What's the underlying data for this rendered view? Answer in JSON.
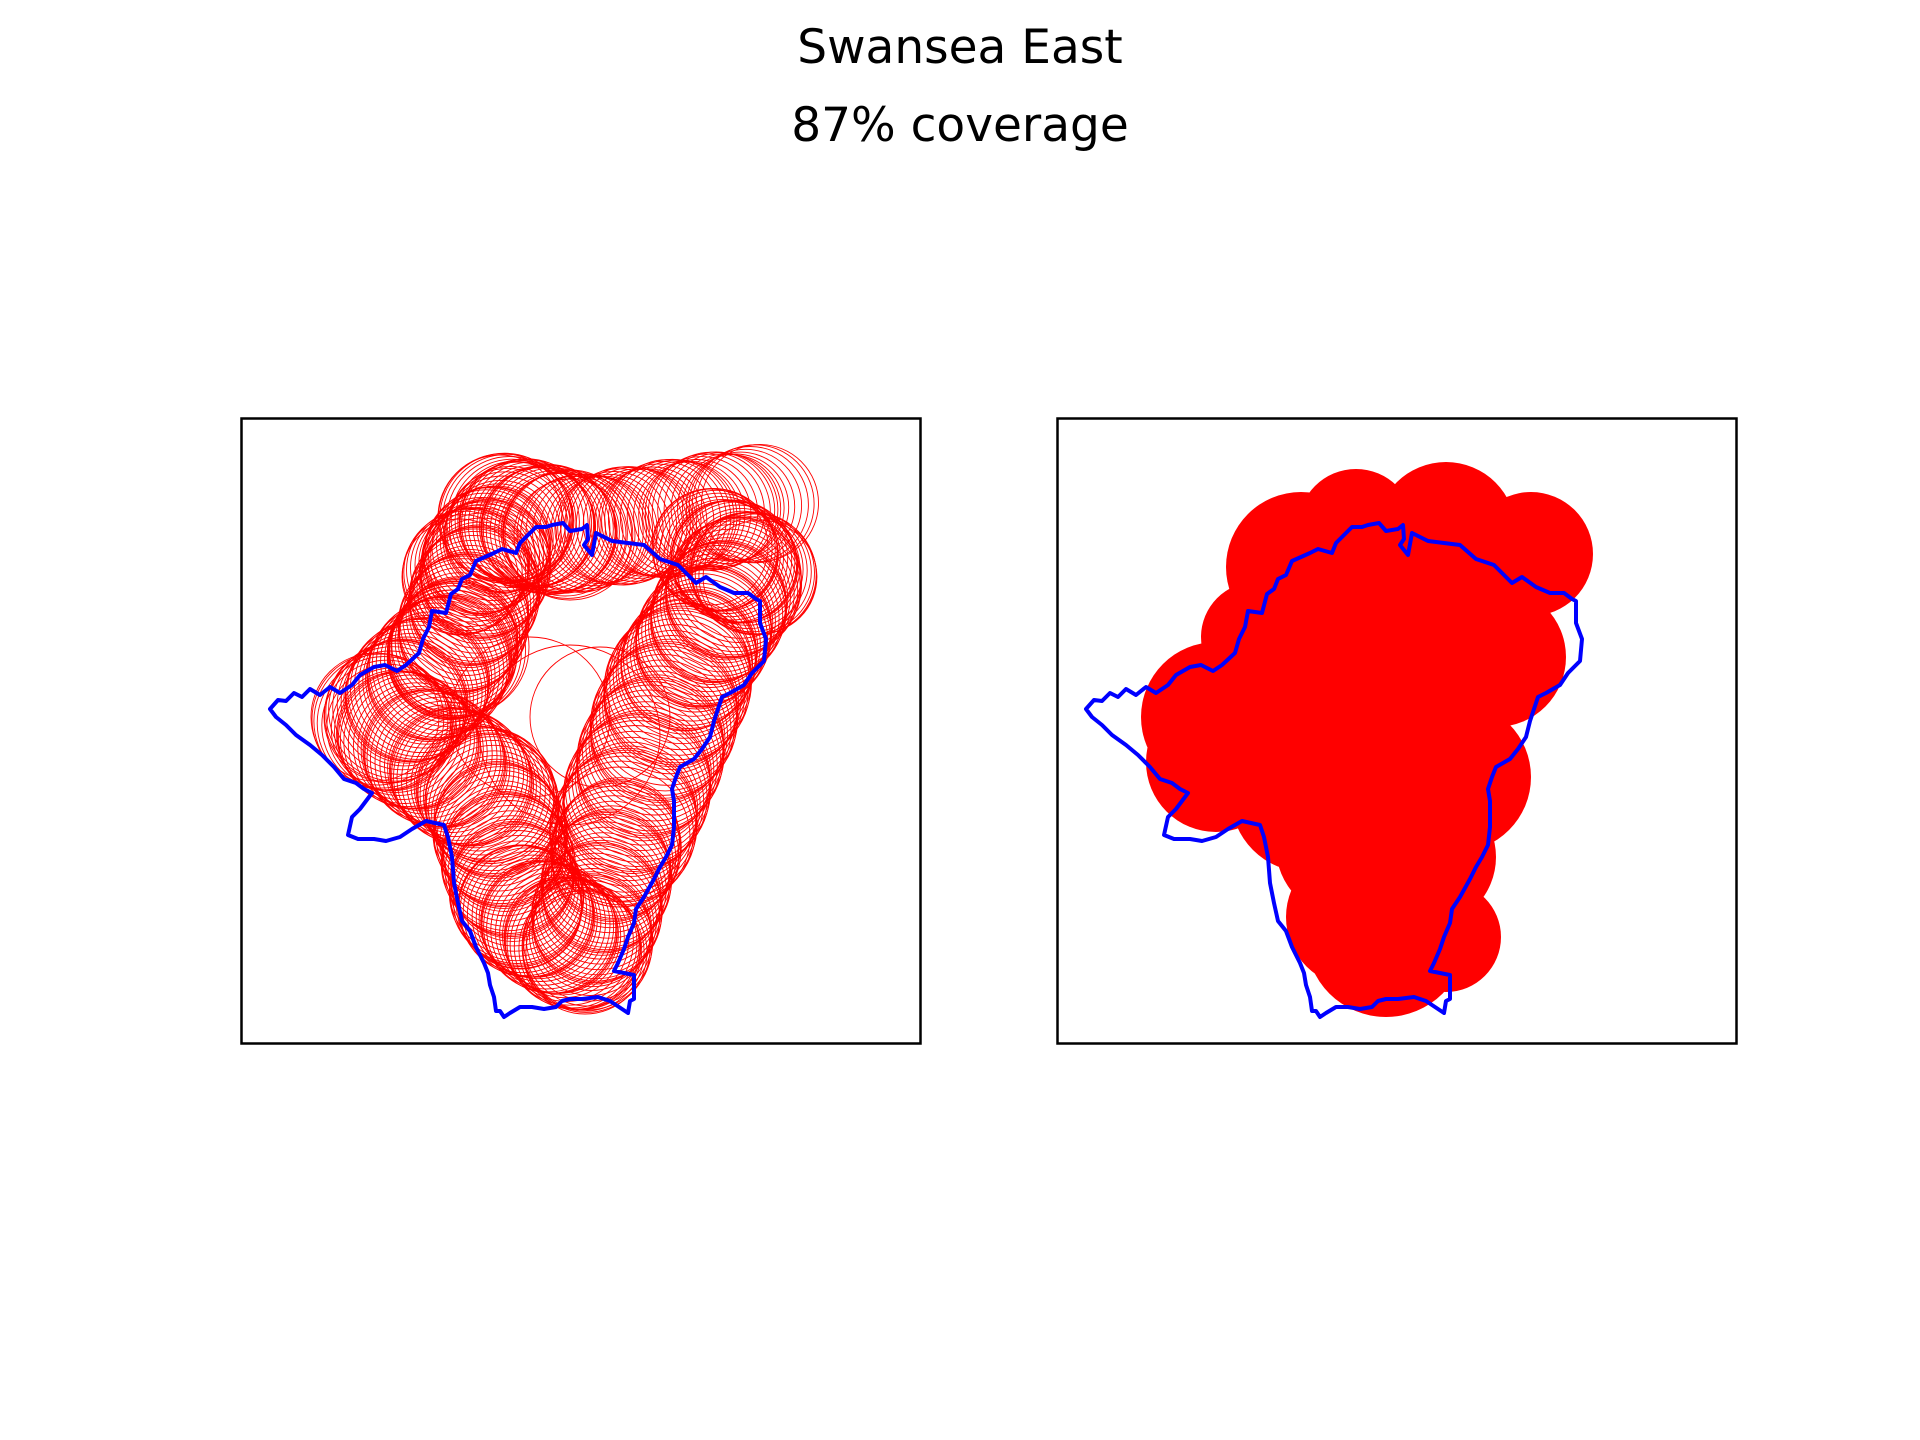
{
  "figure": {
    "title": "Swansea East",
    "subtitle": "87% coverage"
  },
  "colors": {
    "boundary": "#0000ff",
    "coverage": "#ff0000",
    "frame": "#000000",
    "background": "#ffffff"
  },
  "panels": [
    {
      "name": "left",
      "style": "circle-outlines"
    },
    {
      "name": "right",
      "style": "filled-union"
    }
  ]
}
